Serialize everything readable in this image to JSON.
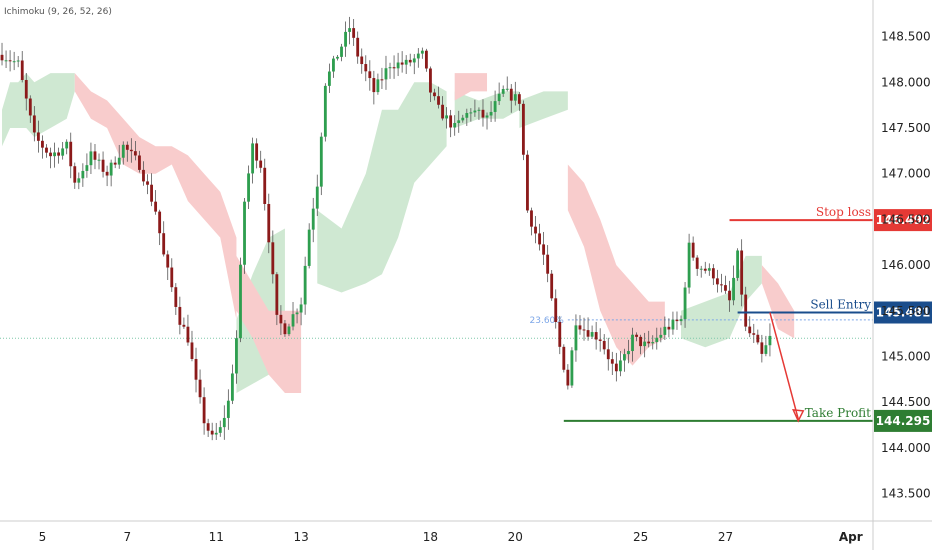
{
  "indicator": "Ichimoku (9, 26, 52, 26)",
  "colors": {
    "up": "#2e9e4f",
    "down": "#8b1a1a",
    "cloud_bull": "#cfe8d2",
    "cloud_bear": "#f8cccc",
    "stop": "#e53935",
    "entry": "#1a4d8c",
    "take": "#2e7d32",
    "arrow": "#e53935",
    "fib": "#7ea7e8",
    "ref": "#7fc8a9"
  },
  "chart_data": {
    "type": "candlestick",
    "ylim": [
      143.2,
      148.9
    ],
    "yticks": [
      "148.500",
      "148.000",
      "147.500",
      "147.000",
      "146.500",
      "146.000",
      "145.500",
      "145.000",
      "144.500",
      "144.000",
      "143.500"
    ],
    "ytick_values": [
      148.5,
      148.0,
      147.5,
      147.0,
      146.5,
      146.0,
      145.5,
      145.0,
      144.5,
      144.0,
      143.5
    ],
    "xticks": [
      "5",
      "7",
      "11",
      "13",
      "18",
      "20",
      "25",
      "27",
      "Apr"
    ],
    "xtick_index": [
      10,
      31,
      53,
      74,
      106,
      127,
      158,
      179,
      210
    ],
    "bar_count": 216,
    "anchors": [
      [
        0,
        148.3
      ],
      [
        4,
        148.2
      ],
      [
        8,
        147.4
      ],
      [
        12,
        147.2
      ],
      [
        16,
        147.3
      ],
      [
        18,
        146.9
      ],
      [
        22,
        147.2
      ],
      [
        26,
        147.0
      ],
      [
        30,
        147.3
      ],
      [
        34,
        147.1
      ],
      [
        38,
        146.6
      ],
      [
        40,
        146.1
      ],
      [
        44,
        145.4
      ],
      [
        46,
        145.2
      ],
      [
        48,
        144.7
      ],
      [
        50,
        144.3
      ],
      [
        52,
        144.1
      ],
      [
        54,
        144.2
      ],
      [
        56,
        144.5
      ],
      [
        58,
        145.2
      ],
      [
        60,
        146.7
      ],
      [
        62,
        147.3
      ],
      [
        64,
        147.1
      ],
      [
        66,
        146.3
      ],
      [
        68,
        145.4
      ],
      [
        70,
        145.3
      ],
      [
        74,
        145.6
      ],
      [
        76,
        146.4
      ],
      [
        78,
        146.9
      ],
      [
        80,
        148.0
      ],
      [
        84,
        148.4
      ],
      [
        86,
        148.6
      ],
      [
        88,
        148.3
      ],
      [
        92,
        147.9
      ],
      [
        96,
        148.2
      ],
      [
        100,
        148.2
      ],
      [
        104,
        148.3
      ],
      [
        106,
        147.9
      ],
      [
        108,
        147.7
      ],
      [
        112,
        147.5
      ],
      [
        116,
        147.7
      ],
      [
        120,
        147.6
      ],
      [
        124,
        147.9
      ],
      [
        128,
        147.8
      ],
      [
        130,
        146.6
      ],
      [
        134,
        146.1
      ],
      [
        136,
        145.6
      ],
      [
        138,
        145.1
      ],
      [
        140,
        144.7
      ],
      [
        142,
        145.4
      ],
      [
        144,
        145.3
      ],
      [
        148,
        145.2
      ],
      [
        152,
        144.8
      ],
      [
        156,
        145.2
      ],
      [
        160,
        145.1
      ],
      [
        164,
        145.3
      ],
      [
        168,
        145.4
      ],
      [
        170,
        146.2
      ],
      [
        172,
        146.0
      ],
      [
        176,
        145.9
      ],
      [
        180,
        145.6
      ],
      [
        182,
        146.1
      ],
      [
        184,
        145.3
      ],
      [
        186,
        145.2
      ],
      [
        188,
        145.0
      ],
      [
        190,
        145.2
      ]
    ],
    "cloud": {
      "bullish": [
        [
          [
            0,
            147.3,
            147.7
          ],
          [
            2,
            147.5,
            148.0
          ],
          [
            4,
            147.5,
            148.0
          ],
          [
            6,
            147.5,
            148.1
          ],
          [
            8,
            147.4,
            148.0
          ],
          [
            12,
            147.5,
            148.1
          ],
          [
            16,
            147.6,
            148.1
          ],
          [
            18,
            147.9,
            148.1
          ]
        ],
        [
          [
            58,
            144.6,
            145.4
          ],
          [
            62,
            144.7,
            145.9
          ],
          [
            66,
            144.8,
            146.3
          ],
          [
            70,
            145.4,
            146.4
          ]
        ],
        [
          [
            78,
            145.8,
            146.6
          ],
          [
            84,
            145.7,
            146.4
          ],
          [
            90,
            145.8,
            147.0
          ],
          [
            94,
            145.9,
            147.7
          ],
          [
            98,
            146.3,
            147.7
          ],
          [
            102,
            146.9,
            148.0
          ],
          [
            106,
            147.1,
            148.0
          ],
          [
            110,
            147.3,
            147.9
          ]
        ],
        [
          [
            112,
            147.5,
            147.9
          ],
          [
            118,
            147.6,
            147.8
          ],
          [
            124,
            147.6,
            147.9
          ],
          [
            128,
            147.7,
            147.9
          ]
        ],
        [
          [
            128,
            147.5,
            147.8
          ],
          [
            134,
            147.6,
            147.9
          ],
          [
            140,
            147.7,
            147.9
          ]
        ],
        [
          [
            168,
            145.2,
            145.5
          ],
          [
            174,
            145.1,
            145.6
          ],
          [
            180,
            145.2,
            145.7
          ],
          [
            184,
            145.6,
            146.1
          ],
          [
            188,
            145.8,
            146.1
          ]
        ]
      ],
      "bearish": [
        [
          [
            18,
            147.9,
            148.1
          ],
          [
            22,
            147.6,
            147.9
          ],
          [
            26,
            147.5,
            147.8
          ],
          [
            30,
            147.1,
            147.6
          ],
          [
            34,
            147.0,
            147.4
          ],
          [
            38,
            147.0,
            147.3
          ],
          [
            42,
            147.1,
            147.3
          ],
          [
            46,
            146.7,
            147.2
          ],
          [
            50,
            146.5,
            147.0
          ],
          [
            54,
            146.3,
            146.8
          ],
          [
            58,
            145.4,
            146.3
          ]
        ],
        [
          [
            58,
            145.5,
            146.1
          ],
          [
            62,
            145.2,
            145.8
          ],
          [
            66,
            144.8,
            145.5
          ],
          [
            70,
            144.6,
            145.5
          ],
          [
            74,
            144.6,
            145.5
          ]
        ],
        [
          [
            112,
            147.8,
            148.1
          ],
          [
            116,
            147.9,
            148.1
          ],
          [
            120,
            147.9,
            148.1
          ]
        ],
        [
          [
            140,
            146.6,
            147.1
          ],
          [
            144,
            146.2,
            146.9
          ],
          [
            148,
            145.5,
            146.5
          ],
          [
            152,
            145.1,
            146.0
          ],
          [
            156,
            144.9,
            145.8
          ],
          [
            160,
            145.1,
            145.6
          ],
          [
            164,
            145.2,
            145.6
          ]
        ],
        [
          [
            188,
            145.8,
            146.0
          ],
          [
            192,
            145.3,
            145.8
          ],
          [
            196,
            145.2,
            145.5
          ]
        ]
      ]
    },
    "levels": {
      "stop_loss": {
        "label": "Stop loss",
        "value": 146.492,
        "display": "146.492",
        "from_index": 180
      },
      "sell_entry": {
        "label": "Sell Entry",
        "value": 145.481,
        "display": "145.481",
        "from_index": 182
      },
      "take_profit": {
        "label": "Take Profit",
        "value": 144.295,
        "display": "144.295",
        "from_index": 139
      }
    },
    "fib": {
      "label": "23.60%",
      "value": 145.4,
      "from_index": 140
    },
    "reference_line": {
      "value": 145.2
    },
    "projection": {
      "from_index": 190,
      "from_value": 145.481,
      "to_index": 197,
      "to_value": 144.295
    }
  }
}
